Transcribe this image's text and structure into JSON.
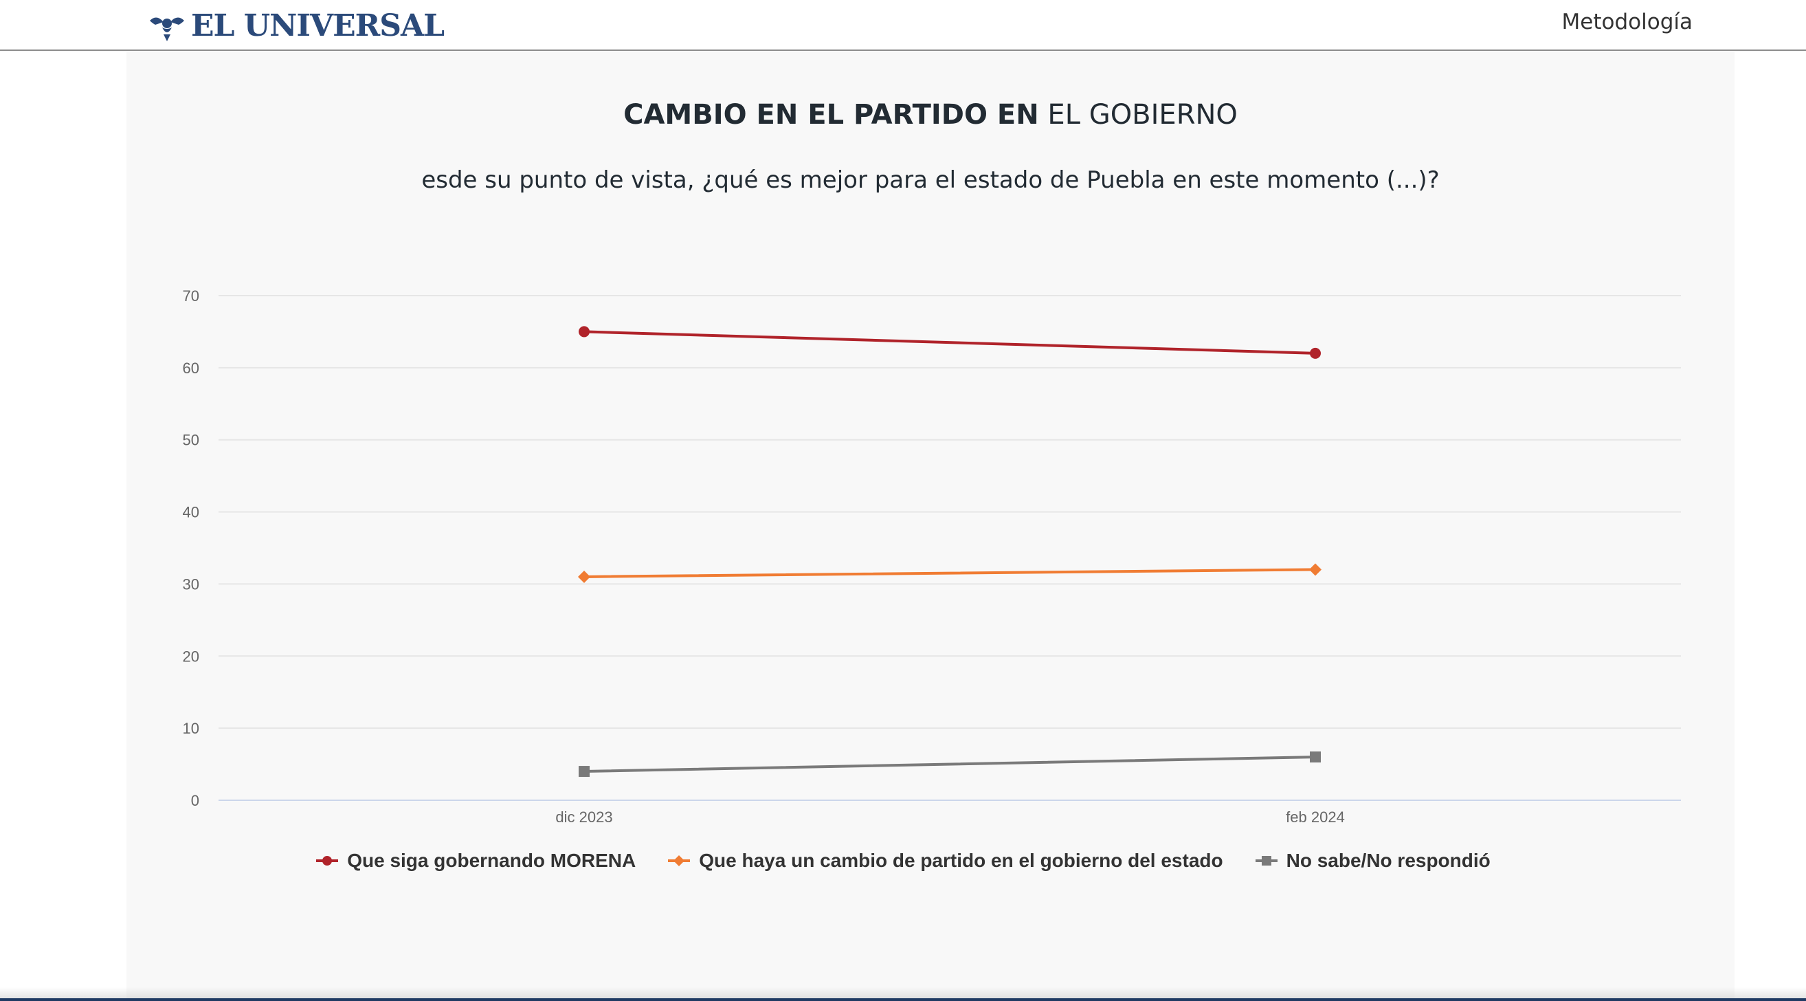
{
  "header": {
    "logo_text": "EL UNIVERSAL",
    "logo_icon": "eagle-emblem-icon",
    "nav_link": "Metodología",
    "brand_color": "#2b4a7a"
  },
  "chart": {
    "title_bold": "CAMBIO EN EL PARTIDO EN",
    "title_normal": "EL GOBIERNO",
    "subtitle": "esde su punto de vista, ¿qué es mejor para el estado de Puebla en este momento (...)?"
  },
  "chart_data": {
    "type": "line",
    "title": "CAMBIO EN EL PARTIDO EN EL GOBIERNO",
    "subtitle": "esde su punto de vista, ¿qué es mejor para el estado de Puebla en este momento (...)?",
    "categories": [
      "dic 2023",
      "feb 2024"
    ],
    "ylim": [
      0,
      70
    ],
    "yticks": [
      0,
      10,
      20,
      30,
      40,
      50,
      60,
      70
    ],
    "grid": true,
    "legend_position": "bottom",
    "series": [
      {
        "name": "Que siga gobernando MORENA",
        "values": [
          65,
          62
        ],
        "color": "#b0232a",
        "marker": "circle"
      },
      {
        "name": "Que haya un cambio de partido en el gobierno del estado",
        "values": [
          31,
          32
        ],
        "color": "#f07c33",
        "marker": "diamond"
      },
      {
        "name": "No sabe/No respondió",
        "values": [
          4,
          6
        ],
        "color": "#7a7a7a",
        "marker": "square"
      }
    ]
  }
}
